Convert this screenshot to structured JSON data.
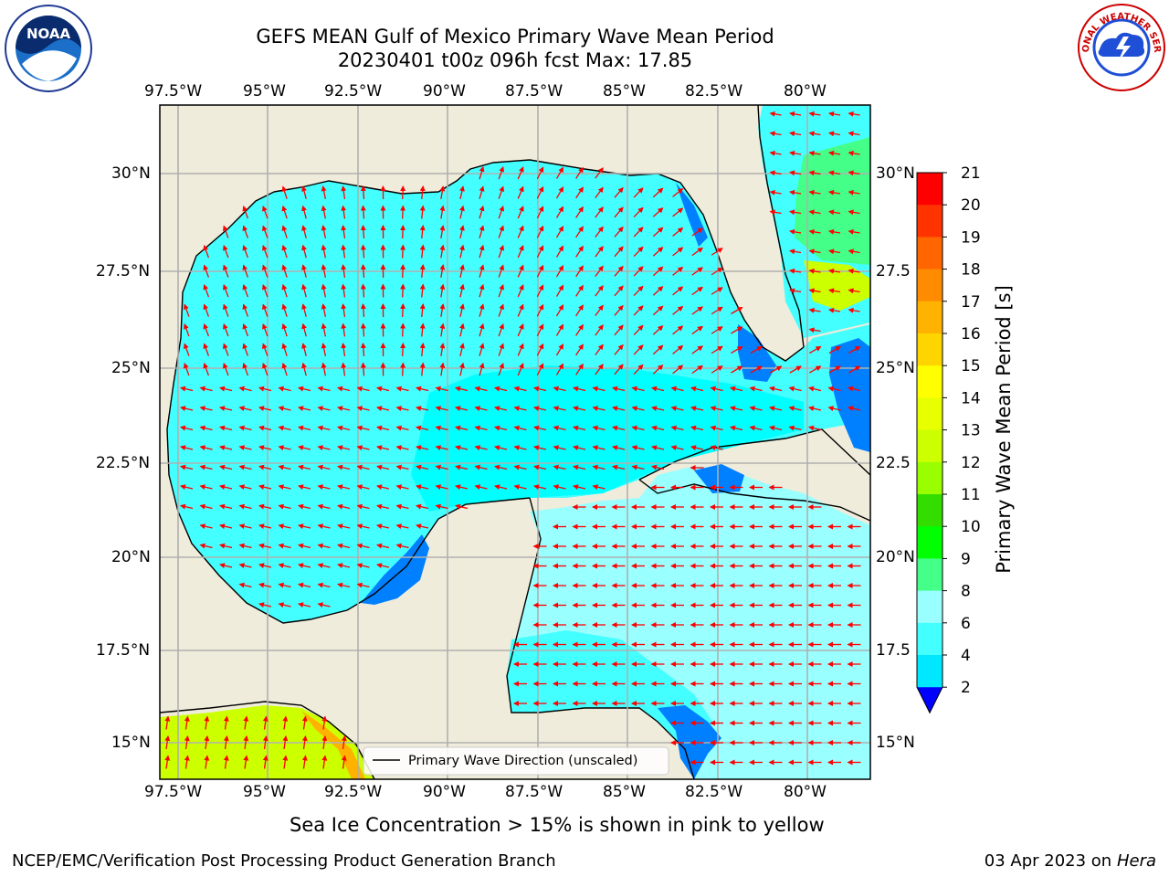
{
  "title_line1": "GEFS MEAN Gulf of Mexico Primary Wave Mean Period",
  "title_line2": "20230401 t00z 096h fcst   Max: 17.85",
  "map": {
    "lon_labels": [
      "97.5°W",
      "95°W",
      "92.5°W",
      "90°W",
      "87.5°W",
      "85°W",
      "82.5°W",
      "80°W"
    ],
    "lat_labels_left": [
      "30°N",
      "27.5°N",
      "25°N",
      "22.5°N",
      "20°N",
      "17.5°N",
      "15°N"
    ],
    "lat_labels_right": [
      "30°N",
      "27.5",
      "25°N",
      "22.5",
      "20°N",
      "17.5",
      "15°N"
    ],
    "land_color": "#efecdb",
    "ocean_color": "#00ffff",
    "arrow_color": "#ff0000",
    "legend_label": "Primary Wave Direction (unscaled)"
  },
  "colorbar": {
    "label": "Primary Wave Mean Period [s]",
    "ticks": [
      "21",
      "20",
      "19",
      "18",
      "17",
      "16",
      "15",
      "14",
      "13",
      "12",
      "11",
      "10",
      "9",
      "8",
      "6",
      "4",
      "2"
    ],
    "colors": [
      "#ff0000",
      "#ff3300",
      "#ff6600",
      "#ff8c00",
      "#ffb300",
      "#ffd500",
      "#ffff00",
      "#e8ff00",
      "#ccff00",
      "#99ff00",
      "#33dd00",
      "#00ff00",
      "#44ff88",
      "#99ffff",
      "#44ffff",
      "#00e8ff",
      "#0080ff"
    ],
    "under_color": "#0000ff"
  },
  "note": "Sea Ice Concentration > 15% is shown in pink to yellow",
  "footer_left": "NCEP/EMC/Verification Post Processing Product Generation Branch",
  "footer_date": "03 Apr 2023 on ",
  "footer_machine": "Hera",
  "logos": {
    "noaa_text": "NOAA",
    "nws_text": "NATIONAL WEATHER SERVICE"
  }
}
